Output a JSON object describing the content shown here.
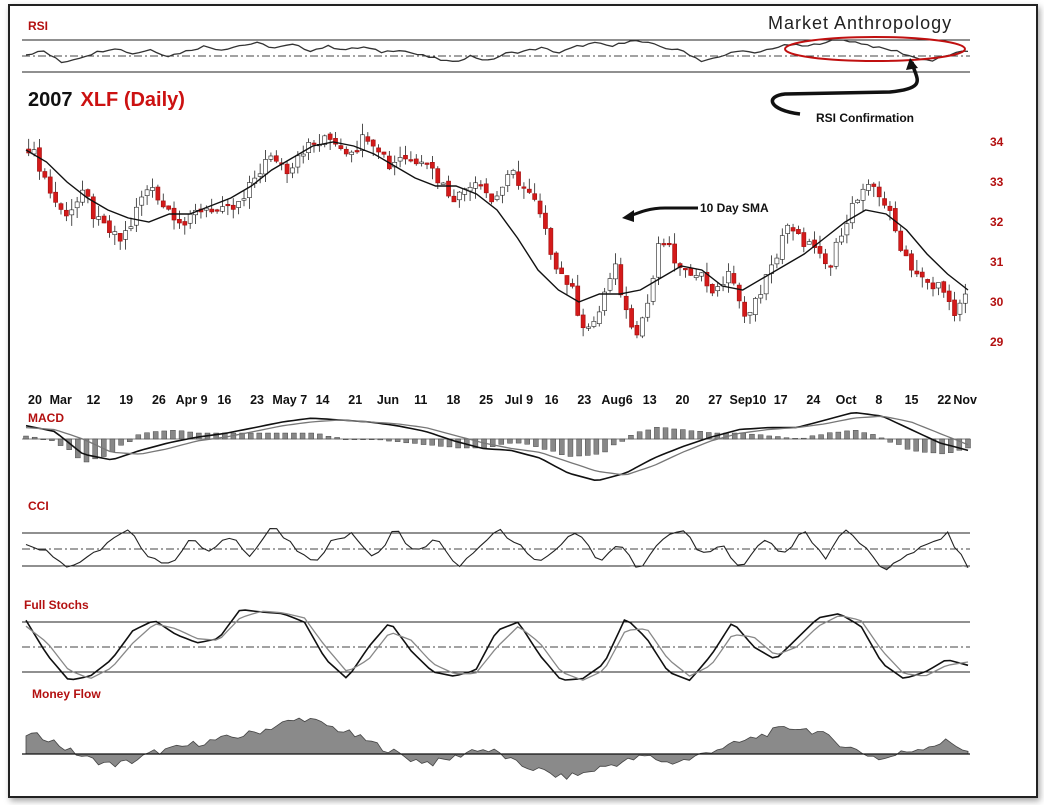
{
  "brand": "Market Anthropology",
  "title": {
    "year": "2007",
    "ticker": "XLF (Daily)"
  },
  "annotations": {
    "rsi_confirmation": "RSI Confirmation",
    "sma": "10 Day SMA"
  },
  "colors": {
    "up": "#ffffff",
    "down": "#d41a1a",
    "accent": "#b31010",
    "fill": "#888888"
  },
  "chart_data": [
    {
      "type": "candlestick",
      "title": "2007 XLF (Daily)",
      "ylim": [
        28.6,
        34.6
      ],
      "yticks": [
        29,
        30,
        31,
        32,
        33,
        34
      ],
      "x_tick_labels": [
        "20",
        "Mar",
        "12",
        "19",
        "26",
        "Apr 9",
        "16",
        "23",
        "May 7",
        "14",
        "21",
        "Jun",
        "11",
        "18",
        "25",
        "Jul 9",
        "16",
        "23",
        "Aug6",
        "13",
        "20",
        "27",
        "Sep10",
        "17",
        "24",
        "Oct",
        "8",
        "15",
        "22",
        "Nov"
      ],
      "close_path": [
        33.9,
        33.4,
        32.7,
        32.2,
        32.4,
        32.7,
        32.0,
        31.8,
        31.5,
        31.9,
        32.6,
        32.9,
        32.4,
        32.2,
        31.9,
        32.3,
        32.4,
        32.2,
        32.3,
        32.5,
        33.1,
        33.5,
        33.6,
        33.3,
        33.8,
        33.9,
        34.0,
        34.1,
        33.8,
        33.9,
        34.2,
        33.9,
        33.4,
        33.7,
        33.5,
        33.7,
        33.2,
        32.8,
        32.6,
        33.0,
        33.1,
        32.5,
        32.9,
        33.2,
        32.8,
        32.4,
        31.5,
        30.8,
        30.4,
        29.5,
        29.3,
        30.2,
        30.8,
        29.7,
        29.3,
        30.1,
        31.6,
        31.2,
        30.6,
        30.9,
        30.5,
        30.2,
        30.8,
        29.9,
        29.7,
        30.4,
        30.9,
        31.9,
        31.6,
        31.5,
        31.1,
        30.8,
        31.8,
        32.4,
        32.7,
        32.9,
        32.4,
        31.6,
        31.0,
        30.6,
        30.3,
        30.5,
        29.5,
        30.2
      ],
      "sma_label": "10 Day SMA",
      "sma_path": [
        33.8,
        33.5,
        33.0,
        32.6,
        32.3,
        32.1,
        32.0,
        32.2,
        32.2,
        32.4,
        32.6,
        32.9,
        33.3,
        33.6,
        33.9,
        34.0,
        33.9,
        33.7,
        33.4,
        33.1,
        32.9,
        32.9,
        32.7,
        32.3,
        31.6,
        30.8,
        30.3,
        30.0,
        30.2,
        30.2,
        30.3,
        30.6,
        30.9,
        30.8,
        30.4,
        30.3,
        30.6,
        30.9,
        31.2,
        31.6,
        32.0,
        32.3,
        32.2,
        31.8,
        31.2,
        30.7,
        30.3
      ]
    },
    {
      "type": "line",
      "title": "RSI",
      "ylim": [
        0,
        100
      ],
      "reference_lines": [
        30,
        50,
        70
      ],
      "values": [
        52,
        56,
        42,
        48,
        55,
        60,
        53,
        58,
        50,
        56,
        62,
        58,
        63,
        66,
        60,
        64,
        57,
        62,
        58,
        61,
        55,
        58,
        52,
        47,
        42,
        50,
        44,
        53,
        56,
        60,
        54,
        62,
        66,
        62,
        70,
        66,
        60,
        56,
        44,
        48,
        57,
        53,
        60,
        64,
        62,
        68,
        70,
        66,
        60,
        56,
        48,
        44,
        52,
        56
      ]
    },
    {
      "type": "line",
      "title": "MACD",
      "series": [
        {
          "values": [
            0.35,
            0.2,
            -0.4,
            -0.55,
            -0.3,
            -0.1,
            0.05,
            0.15,
            0.3,
            0.45,
            0.55,
            0.5,
            0.45,
            0.35,
            0.2,
            -0.05,
            -0.25,
            -0.3,
            -0.5,
            -0.9,
            -1.1,
            -0.9,
            -0.5,
            -0.2,
            0.05,
            0.25,
            0.3,
            0.3,
            0.5,
            0.7,
            0.6,
            0.25,
            -0.1,
            -0.3
          ]
        },
        {
          "values": [
            0.3,
            0.25,
            0.0,
            -0.35,
            -0.4,
            -0.25,
            -0.05,
            0.05,
            0.2,
            0.35,
            0.45,
            0.5,
            0.45,
            0.4,
            0.3,
            0.1,
            -0.1,
            -0.25,
            -0.35,
            -0.6,
            -0.85,
            -0.95,
            -0.7,
            -0.35,
            -0.05,
            0.15,
            0.25,
            0.3,
            0.4,
            0.55,
            0.6,
            0.45,
            0.15,
            -0.15
          ]
        }
      ]
    },
    {
      "type": "line",
      "title": "CCI",
      "reference_lines": [
        -100,
        0,
        100
      ],
      "values": [
        20,
        0,
        -110,
        -60,
        40,
        110,
        -40,
        -100,
        60,
        -20,
        80,
        -40,
        140,
        20,
        -90,
        60,
        90,
        -70,
        130,
        -30,
        70,
        -110,
        -20,
        120,
        40,
        -100,
        20,
        110,
        -80,
        30,
        -130,
        50,
        130,
        -40,
        20,
        -120,
        70,
        -30,
        110,
        -60,
        130,
        0,
        -140,
        -30,
        20,
        90,
        -110
      ]
    },
    {
      "type": "line",
      "title": "Full Stochs",
      "reference_lines": [
        20,
        50,
        80
      ],
      "series": [
        {
          "values": [
            82,
            40,
            10,
            15,
            35,
            70,
            82,
            65,
            55,
            60,
            95,
            92,
            90,
            80,
            35,
            12,
            50,
            80,
            45,
            20,
            15,
            22,
            70,
            80,
            40,
            10,
            12,
            30,
            85,
            60,
            20,
            10,
            40,
            80,
            50,
            35,
            60,
            85,
            90,
            75,
            30,
            12,
            20,
            35,
            28
          ]
        },
        {
          "values": [
            75,
            55,
            22,
            12,
            25,
            55,
            78,
            72,
            60,
            58,
            85,
            93,
            91,
            85,
            50,
            20,
            35,
            68,
            58,
            30,
            18,
            18,
            50,
            75,
            55,
            20,
            10,
            22,
            70,
            72,
            35,
            15,
            28,
            65,
            62,
            40,
            50,
            75,
            88,
            82,
            45,
            18,
            15,
            28,
            32
          ]
        }
      ]
    },
    {
      "type": "area",
      "title": "Money Flow",
      "values": [
        22,
        18,
        4,
        -6,
        -12,
        -8,
        2,
        6,
        12,
        16,
        20,
        26,
        34,
        40,
        32,
        24,
        14,
        4,
        -6,
        -10,
        -4,
        6,
        2,
        -12,
        -18,
        -26,
        -22,
        -14,
        -8,
        -2,
        -10,
        -6,
        4,
        10,
        18,
        26,
        30,
        24,
        12,
        2,
        -6,
        2,
        8,
        14,
        4
      ]
    }
  ]
}
